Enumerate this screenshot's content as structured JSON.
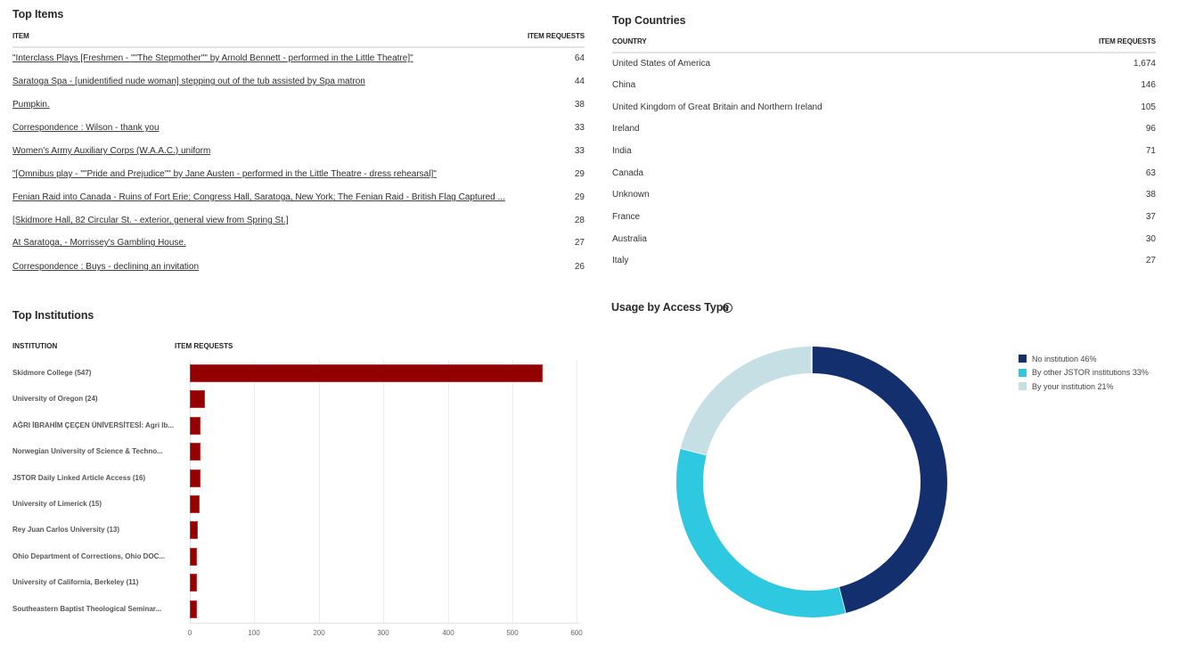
{
  "top_items": {
    "title": "Top Items",
    "col_item": "ITEM",
    "col_requests": "ITEM REQUESTS",
    "rows": [
      {
        "label": "\"Interclass Plays [Freshmen - \"\"The Stepmother\"\" by Arnold Bennett - performed in the Little Theatre]\"",
        "value": "64"
      },
      {
        "label": "Saratoga Spa - [unidentified nude woman] stepping out of the tub assisted by Spa matron",
        "value": "44"
      },
      {
        "label": "Pumpkin.",
        "value": "38"
      },
      {
        "label": "Correspondence : Wilson - thank you",
        "value": "33"
      },
      {
        "label": "Women's Army Auxiliary Corps (W.A.A.C.) uniform",
        "value": "33"
      },
      {
        "label": "\"[Omnibus play - \"\"Pride and Prejudice\"\" by Jane Austen - performed in the Little Theatre - dress rehearsal]\"",
        "value": "29"
      },
      {
        "label": "Fenian Raid into Canada - Ruins of Fort Erie; Congress Hall, Saratoga, New York; The Fenian Raid - British Flag Captured ...",
        "value": "29"
      },
      {
        "label": "[Skidmore Hall, 82 Circular St. - exterior, general view from Spring St.]",
        "value": "28"
      },
      {
        "label": "At Saratoga, - Morrissey's Gambling House.",
        "value": "27"
      },
      {
        "label": "Correspondence : Buys - declining an invitation",
        "value": "26"
      }
    ]
  },
  "top_countries": {
    "title": "Top Countries",
    "col_country": "COUNTRY",
    "col_requests": "ITEM REQUESTS",
    "rows": [
      {
        "label": "United States of America",
        "value": "1,674"
      },
      {
        "label": "China",
        "value": "146"
      },
      {
        "label": "United Kingdom of Great Britain and Northern Ireland",
        "value": "105"
      },
      {
        "label": "Ireland",
        "value": "96"
      },
      {
        "label": "India",
        "value": "71"
      },
      {
        "label": "Canada",
        "value": "63"
      },
      {
        "label": "Unknown",
        "value": "38"
      },
      {
        "label": "France",
        "value": "37"
      },
      {
        "label": "Australia",
        "value": "30"
      },
      {
        "label": "Italy",
        "value": "27"
      }
    ]
  },
  "top_institutions": {
    "title": "Top Institutions",
    "col_institution": "INSTITUTION",
    "col_requests": "ITEM REQUESTS",
    "labels": [
      "Skidmore College (547)",
      "University of Oregon (24)",
      "AĞRI İBRAHİM ÇEÇEN ÜNİVERSİTESİ: Agri Ib...",
      "Norwegian University of Science & Techno...",
      "JSTOR Daily Linked Article Access (16)",
      "University of Limerick (15)",
      "Rey Juan Carlos University (13)",
      "Ohio Department of Corrections, Ohio DOC...",
      "University of California, Berkeley (11)",
      "Southeastern Baptist Theological Seminar..."
    ],
    "x_ticks": [
      "0",
      "100",
      "200",
      "300",
      "400",
      "500",
      "600"
    ]
  },
  "access_type": {
    "title": "Usage by Access Type",
    "legend": [
      {
        "label": "No institution 46%",
        "color": "#142f6e"
      },
      {
        "label": "By other JSTOR institutions 33%",
        "color": "#2ec9e0"
      },
      {
        "label": "By your institution 21%",
        "color": "#c5dfe5"
      }
    ]
  },
  "chart_data": [
    {
      "type": "bar",
      "orientation": "horizontal",
      "title": "Top Institutions",
      "xlabel": "ITEM REQUESTS",
      "ylabel": "INSTITUTION",
      "categories": [
        "Skidmore College",
        "University of Oregon",
        "AĞRI İBRAHİM ÇEÇEN ÜNİVERSİTESİ: Agri Ib...",
        "Norwegian University of Science & Techno...",
        "JSTOR Daily Linked Article Access",
        "University of Limerick",
        "Rey Juan Carlos University",
        "Ohio Department of Corrections, Ohio DOC...",
        "University of California, Berkeley",
        "Southeastern Baptist Theological Seminar..."
      ],
      "values": [
        547,
        24,
        17,
        16,
        16,
        15,
        13,
        11,
        11,
        11
      ],
      "xlim": [
        0,
        600
      ],
      "x_ticks": [
        0,
        100,
        200,
        300,
        400,
        500,
        600
      ],
      "grid": true,
      "color": "#930000"
    },
    {
      "type": "pie",
      "variant": "donut",
      "title": "Usage by Access Type",
      "categories": [
        "No institution",
        "By other JSTOR institutions",
        "By your institution"
      ],
      "values": [
        46,
        33,
        21
      ],
      "colors": [
        "#142f6e",
        "#2ec9e0",
        "#c5dfe5"
      ],
      "legend_position": "right"
    },
    {
      "type": "table",
      "title": "Top Items",
      "columns": [
        "ITEM",
        "ITEM REQUESTS"
      ],
      "values": [
        64,
        44,
        38,
        33,
        33,
        29,
        29,
        28,
        27,
        26
      ]
    },
    {
      "type": "table",
      "title": "Top Countries",
      "columns": [
        "COUNTRY",
        "ITEM REQUESTS"
      ],
      "categories": [
        "United States of America",
        "China",
        "United Kingdom of Great Britain and Northern Ireland",
        "Ireland",
        "India",
        "Canada",
        "Unknown",
        "France",
        "Australia",
        "Italy"
      ],
      "values": [
        1674,
        146,
        105,
        96,
        71,
        63,
        38,
        37,
        30,
        27
      ]
    }
  ]
}
